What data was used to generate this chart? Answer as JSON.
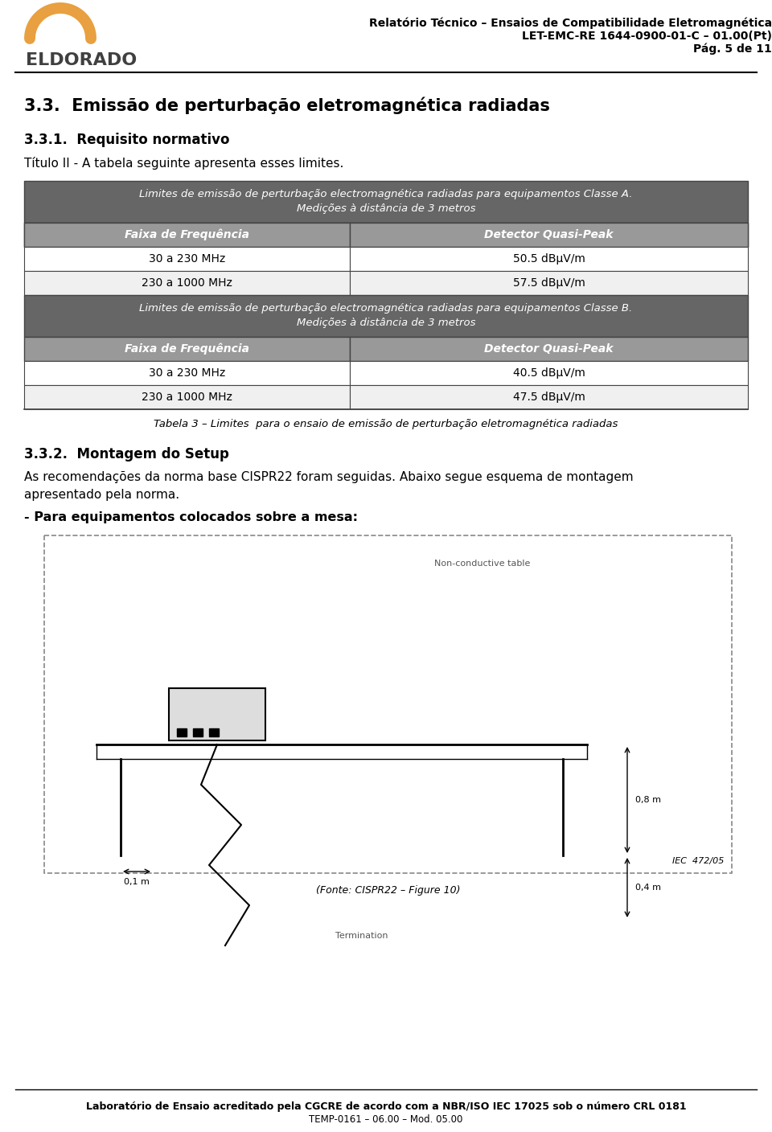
{
  "page_title_line1": "Relatório Técnico – Ensaios de Compatibilidade Eletromagnética",
  "page_title_line2": "LET-EMC-RE 1644-0900-01-C – 01.00(Pt)",
  "page_title_line3": "Pág. 5 de 11",
  "section_title": "3.3.  Emissão de perturbação eletromagnética radiadas",
  "subsection1_title": "3.3.1.  Requisito normativo",
  "subsection1_body": "Título II - A tabela seguinte apresenta esses limites.",
  "table_classA_header": "Limites de emissão de perturbação electromagnética radiadas para equipamentos Classe A.\nMedições à distância de 3 metros",
  "table_classB_header": "Limites de emissão de perturbação electromagnética radiadas para equipamentos Classe B.\nMedições à distância de 3 metros",
  "table_col1": "Faixa de Frequência",
  "table_col2": "Detector Quasi-Peak",
  "classA_rows": [
    [
      "30 a 230 MHz",
      "50.5 dBμV/m"
    ],
    [
      "230 a 1000 MHz",
      "57.5 dBμV/m"
    ]
  ],
  "classB_rows": [
    [
      "30 a 230 MHz",
      "40.5 dBμV/m"
    ],
    [
      "230 a 1000 MHz",
      "47.5 dBμV/m"
    ]
  ],
  "table_caption": "Tabela 3 – Limites  para o ensaio de emissão de perturbação eletromagnética radiadas",
  "subsection2_title": "3.3.2.  Montagem do Setup",
  "subsection2_body1": "As recomendações da norma base CISPR22 foram seguidas. Abaixo segue esquema de montagem\napresentado pela norma.",
  "subsection2_bold": "- Para equipamentos colocados sobre a mesa:",
  "footer_line1": "Laboratório de Ensaio acreditado pela CGCRE de acordo com a NBR/ISO IEC 17025 sob o número CRL 0181",
  "footer_line2": "TEMP-0161 – 06.00 – Mod. 05.00",
  "dark_header_bg": "#666666",
  "medium_header_bg": "#999999",
  "light_row_bg": "#f0f0f0",
  "white_bg": "#ffffff",
  "border_color": "#444444",
  "header_text_color": "#ffffff",
  "logo_arc_color": "#e8a040",
  "logo_text_color": "#404040"
}
